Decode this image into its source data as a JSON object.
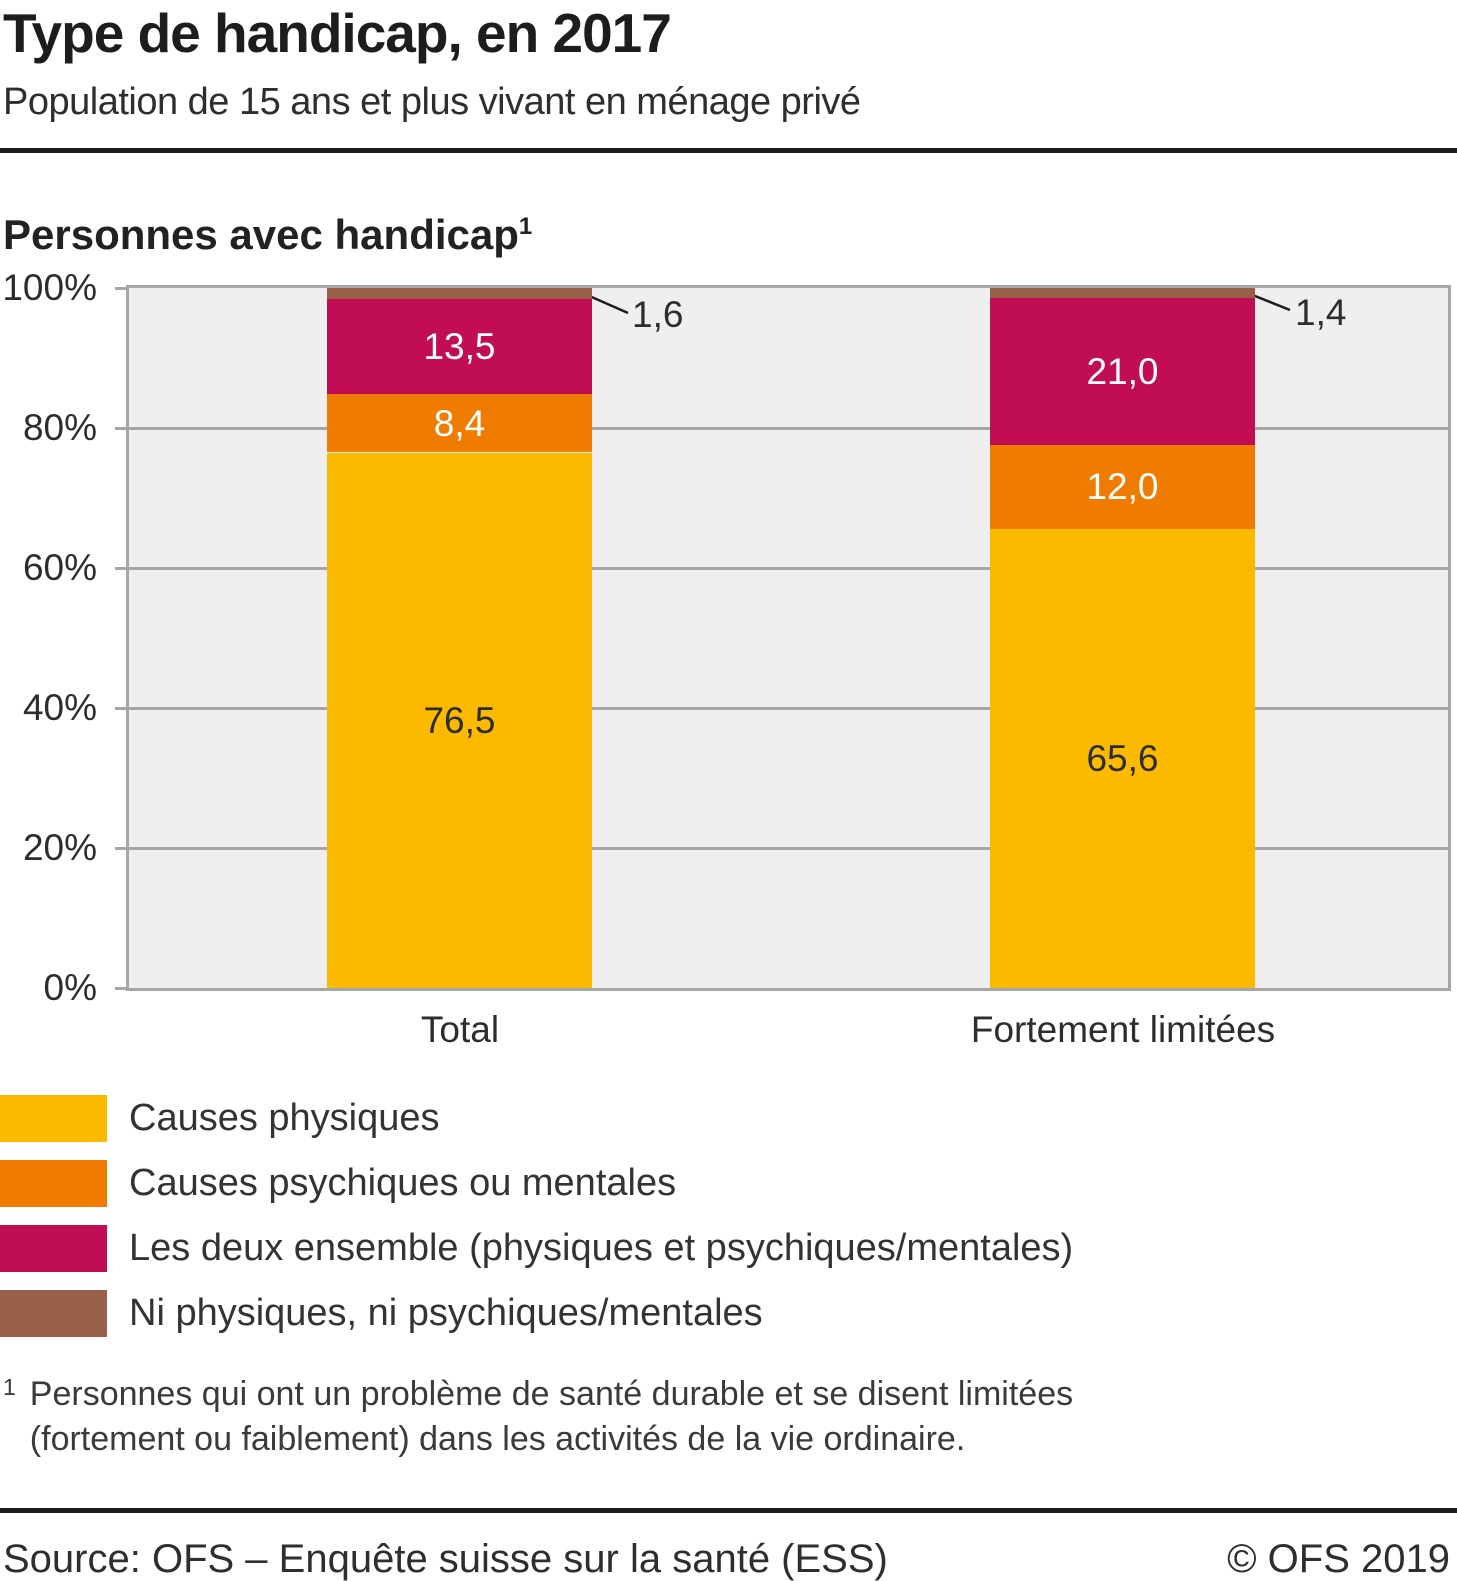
{
  "header": {
    "title": "Type de handicap, en 2017",
    "subtitle": "Population de 15 ans et plus vivant en ménage privé"
  },
  "chart_heading": {
    "text": "Personnes avec handicap",
    "sup": "1"
  },
  "chart_data": {
    "type": "bar",
    "stacked": true,
    "unit": "%",
    "title": "Personnes avec handicap",
    "categories": [
      "Total",
      "Fortement limitées"
    ],
    "series": [
      {
        "name": "Causes physiques",
        "color": "#fbba00",
        "values": [
          76.5,
          65.6
        ],
        "value_labels": [
          "76,5",
          "65,6"
        ],
        "label_color": "#2d2d2d",
        "labels_inside": true
      },
      {
        "name": "Causes psychiques ou mentales",
        "color": "#ef7c00",
        "values": [
          8.4,
          12.0
        ],
        "value_labels": [
          "8,4",
          "12,0"
        ],
        "label_color": "#ffffff",
        "labels_inside": true
      },
      {
        "name": "Les deux ensemble (physiques et psychiques/mentales)",
        "color": "#c10d54",
        "values": [
          13.5,
          21.0
        ],
        "value_labels": [
          "13,5",
          "21,0"
        ],
        "label_color": "#ffffff",
        "labels_inside": true
      },
      {
        "name": "Ni physiques, ni psychiques/mentales",
        "color": "#996049",
        "values": [
          1.6,
          1.4
        ],
        "value_labels": [
          "1,6",
          "1,4"
        ],
        "label_color": "#2d2d2d",
        "labels_inside": false
      }
    ],
    "ylim": [
      0,
      100
    ],
    "yticks": [
      "0%",
      "20%",
      "40%",
      "60%",
      "80%",
      "100%"
    ],
    "grid": true,
    "plot_bg": "#efefef",
    "grid_color": "#a6a6a6",
    "legend_position": "bottom-left"
  },
  "footnote": {
    "marker": "1",
    "lines": [
      "Personnes qui ont un problème de santé durable et se disent limitées",
      "(fortement ou faiblement) dans les activités de la vie ordinaire."
    ]
  },
  "footer": {
    "source": "Source: OFS – Enquête suisse sur la santé (ESS)",
    "copyright": "© OFS 2019"
  }
}
